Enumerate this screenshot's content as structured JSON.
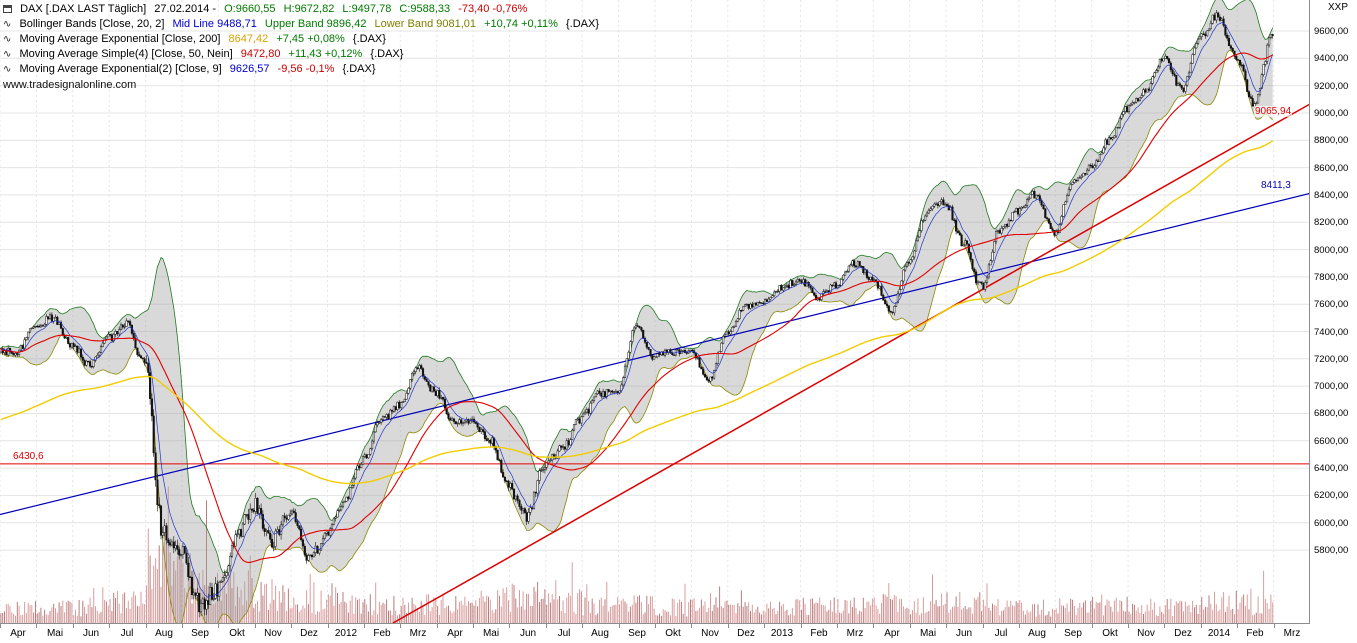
{
  "window": {
    "unit_label": "XXP",
    "watermark": "www.tradesignalonline.com"
  },
  "legend": {
    "line1": {
      "title": "DAX [.DAX LAST Täglich]",
      "date": "27.02.2014 -",
      "open": "O:9660,55",
      "high": "H:9672,82",
      "low": "L:9497,78",
      "close": "C:9588,33",
      "change": "-73,40 -0,76%"
    },
    "line2": {
      "icon_glyph": "∿",
      "name": "Bollinger Bands [Close, 20, 2]",
      "mid": "Mid Line 9488,71",
      "upper": "Upper Band 9896,42",
      "lower": "Lower Band 9081,01",
      "change": "+10,74 +0,11%",
      "symbol": "{.DAX}"
    },
    "line3": {
      "icon_glyph": "∿",
      "name": "Moving Average Exponential [Close, 200]",
      "value": "8647,42",
      "change": "+7,45 +0,08%",
      "symbol": "{.DAX}"
    },
    "line4": {
      "icon_glyph": "∿",
      "name": "Moving Average Simple(4) [Close, 50, Nein]",
      "value": "9472,80",
      "change": "+11,43 +0,12%",
      "symbol": "{.DAX}"
    },
    "line5": {
      "icon_glyph": "∿",
      "name": "Moving Average Exponential(2) [Close, 9]",
      "value": "9626,57",
      "change": "-9,56 -0,1%",
      "symbol": "{.DAX}"
    }
  },
  "price_labels": {
    "red_trendline": "9065,94",
    "blue_trendline": "8411,3",
    "horizontal_line": "6430,6"
  },
  "colors": {
    "grid": "#e4e4e4",
    "band_fill": "#a0a0a0",
    "band_green": "#1f7a1f",
    "band_olive": "#8a8a00",
    "ema200_yellow": "#f2cc00",
    "sma50_red": "#e00000",
    "ema9_blue": "#2233cc",
    "volume": "#cc7c7c",
    "volume_dark": "#a05050",
    "candle": "#111111"
  },
  "chart_data": {
    "type": "candlestick",
    "title": "DAX [.DAX LAST Täglich]",
    "last_bar": {
      "date": "27.02.2014",
      "open": 9660.55,
      "high": 9672.82,
      "low": 9497.78,
      "close": 9588.33,
      "change": -73.4,
      "change_pct": -0.76
    },
    "indicators": {
      "bollinger": {
        "period": 20,
        "deviation": 2,
        "mid": 9488.71,
        "upper": 9896.42,
        "lower": 9081.01,
        "change": 10.74,
        "change_pct": 0.11
      },
      "ema200": {
        "period": 200,
        "value": 8647.42,
        "change": 7.45,
        "change_pct": 0.08
      },
      "sma50": {
        "period": 50,
        "value": 9472.8,
        "change": 11.43,
        "change_pct": 0.12
      },
      "ema9": {
        "period": 9,
        "value": 9626.57,
        "change": -9.56,
        "change_pct": -0.1
      }
    },
    "ylim": [
      5266,
      9827
    ],
    "y_ticks": [
      9600,
      9400,
      9200,
      9000,
      8800,
      8600,
      8400,
      8200,
      8000,
      7800,
      7600,
      7400,
      7200,
      7000,
      6800,
      6600,
      6400,
      6200,
      6000,
      5800
    ],
    "x_labels": [
      "Apr",
      "Mai",
      "Jun",
      "Jul",
      "Aug",
      "Sep",
      "Okt",
      "Nov",
      "Dez",
      "2012",
      "Feb",
      "Mrz",
      "Apr",
      "Mai",
      "Jun",
      "Jul",
      "Aug",
      "Sep",
      "Okt",
      "Nov",
      "Dez",
      "2013",
      "Feb",
      "Mrz",
      "Apr",
      "Mai",
      "Jun",
      "Jul",
      "Aug",
      "Sep",
      "Okt",
      "Nov",
      "Dez",
      "2014",
      "Feb",
      "Mrz"
    ],
    "days_per_month": 20,
    "ema200_seed": 6750,
    "semi_monthly_close": [
      7250,
      7450,
      7500,
      7290,
      7150,
      7350,
      7450,
      7160,
      5950,
      5790,
      5400,
      5500,
      5870,
      6140,
      5870,
      6090,
      5740,
      5900,
      6180,
      6460,
      6750,
      6860,
      7130,
      6950,
      6740,
      6760,
      6600,
      6260,
      6050,
      6420,
      6550,
      6770,
      6940,
      6970,
      7440,
      7216,
      7250,
      7260,
      7050,
      7400,
      7580,
      7610,
      7720,
      7780,
      7650,
      7740,
      7900,
      7795,
      7530,
      7915,
      8280,
      8350,
      8050,
      7720,
      8150,
      8280,
      8410,
      8110,
      8500,
      8600,
      8800,
      9034,
      9150,
      9405,
      9170,
      9552,
      9720,
      9390,
      9070,
      9588
    ],
    "monthly_volatility": [
      60,
      60,
      65,
      70,
      160,
      150,
      120,
      110,
      90,
      70,
      60,
      60,
      65,
      80,
      90,
      70,
      60,
      55,
      55,
      55,
      50,
      50,
      55,
      55,
      65,
      60,
      70,
      60,
      60,
      55,
      55,
      50,
      55,
      70,
      65
    ],
    "volume_profile_rel": [
      22,
      24,
      26,
      32,
      95,
      72,
      55,
      45,
      34,
      32,
      30,
      30,
      30,
      38,
      42,
      34,
      27,
      28,
      25,
      25,
      22,
      24,
      26,
      26,
      30,
      27,
      32,
      25,
      24,
      26,
      27,
      25,
      25,
      33,
      29
    ],
    "trend_lines": [
      {
        "name": "blue-uptrend",
        "color": "#0000bb",
        "width": 1.2,
        "x1_frac": 0.0,
        "price1": 6060,
        "x2_frac": 1.0,
        "price2": 8411.3,
        "label": "8411,3"
      },
      {
        "name": "red-uptrend",
        "color": "#dd0000",
        "width": 1.5,
        "x1_frac": 0.3,
        "price1": 5266,
        "x2_frac": 1.0,
        "price2": 9065.94,
        "label": "9065,94"
      }
    ],
    "horizontal_line": {
      "price": 6430.6,
      "color": "#e00000",
      "label": "6430,6"
    }
  }
}
